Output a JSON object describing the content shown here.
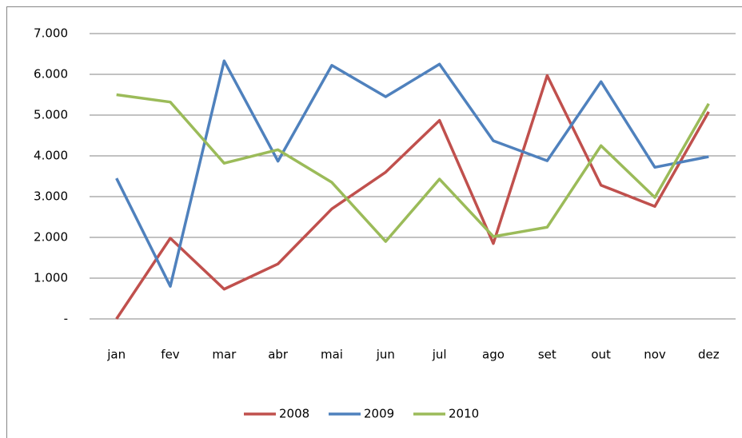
{
  "chart_data": {
    "type": "line",
    "categories": [
      "jan",
      "fev",
      "mar",
      "abr",
      "mai",
      "jun",
      "jul",
      "ago",
      "set",
      "out",
      "nov",
      "dez"
    ],
    "series": [
      {
        "name": "2008",
        "color": "#c0504d",
        "values": [
          0,
          1980,
          730,
          1350,
          2700,
          3600,
          4870,
          1850,
          5970,
          3280,
          2760,
          5080
        ]
      },
      {
        "name": "2009",
        "color": "#4f81bd",
        "values": [
          3450,
          800,
          6330,
          3870,
          6220,
          5450,
          6250,
          4370,
          3880,
          5820,
          3720,
          3980
        ]
      },
      {
        "name": "2010",
        "color": "#9bbb59",
        "values": [
          5500,
          5320,
          3820,
          4150,
          3350,
          1900,
          3430,
          2020,
          2250,
          4250,
          2980,
          5280
        ]
      }
    ],
    "ylim": [
      0,
      7000
    ],
    "yticks": [
      {
        "value": 0,
        "label": "-"
      },
      {
        "value": 1000,
        "label": "1.000"
      },
      {
        "value": 2000,
        "label": "2.000"
      },
      {
        "value": 3000,
        "label": "3.000"
      },
      {
        "value": 4000,
        "label": "4.000"
      },
      {
        "value": 5000,
        "label": "5.000"
      },
      {
        "value": 6000,
        "label": "6.000"
      },
      {
        "value": 7000,
        "label": "7.000"
      }
    ],
    "grid": true,
    "legend": "bottom"
  }
}
